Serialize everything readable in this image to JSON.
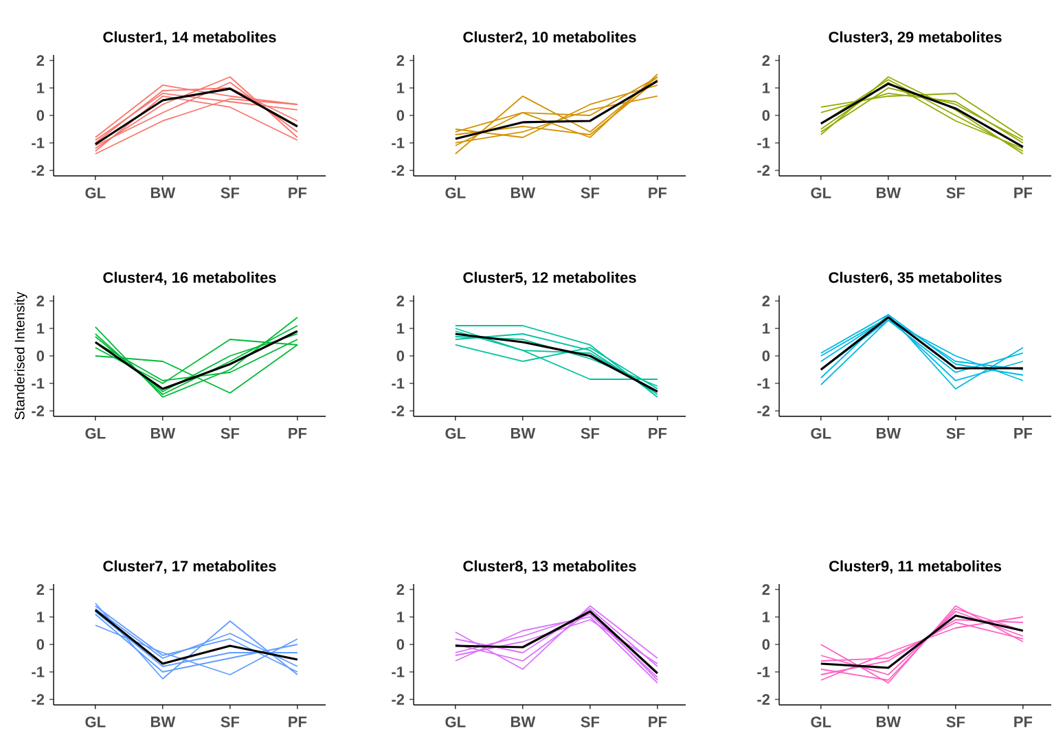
{
  "chart_data": [
    {
      "type": "line",
      "title": "Cluster1, 14 metabolites",
      "categories": [
        "GL",
        "BW",
        "SF",
        "PF"
      ],
      "ylim": [
        -2.2,
        2.2
      ],
      "yticks": [
        -2,
        -1,
        0,
        1,
        2
      ],
      "series": [
        {
          "color": "#F8766D",
          "values": [
            -1.4,
            -0.2,
            0.6,
            0.4
          ]
        },
        {
          "color": "#F8766D",
          "values": [
            -0.8,
            1.1,
            0.7,
            0.4
          ]
        },
        {
          "color": "#F8766D",
          "values": [
            -1.2,
            0.4,
            1.4,
            -0.8
          ]
        },
        {
          "color": "#F8766D",
          "values": [
            -0.9,
            0.8,
            0.5,
            0.2
          ]
        },
        {
          "color": "#F8766D",
          "values": [
            -1.1,
            0.1,
            1.2,
            -0.6
          ]
        },
        {
          "color": "#F8766D",
          "values": [
            -1.3,
            0.7,
            0.3,
            -0.9
          ]
        },
        {
          "color": "#F8766D",
          "values": [
            -1.0,
            0.9,
            1.0,
            -0.2
          ]
        },
        {
          "color": "#000000",
          "values": [
            -1.05,
            0.55,
            0.97,
            -0.4
          ]
        }
      ]
    },
    {
      "type": "line",
      "title": "Cluster2, 10 metabolites",
      "categories": [
        "GL",
        "BW",
        "SF",
        "PF"
      ],
      "ylim": [
        -2.2,
        2.2
      ],
      "yticks": [
        -2,
        -1,
        0,
        1,
        2
      ],
      "series": [
        {
          "color": "#D39200",
          "values": [
            -1.4,
            0.7,
            -0.6,
            1.4
          ]
        },
        {
          "color": "#D39200",
          "values": [
            -0.5,
            -0.8,
            0.4,
            1.1
          ]
        },
        {
          "color": "#D39200",
          "values": [
            -0.6,
            0.1,
            -0.8,
            1.5
          ]
        },
        {
          "color": "#D39200",
          "values": [
            -1.0,
            -0.6,
            0.2,
            0.7
          ]
        },
        {
          "color": "#D39200",
          "values": [
            -0.7,
            -0.4,
            -0.7,
            1.3
          ]
        },
        {
          "color": "#D39200",
          "values": [
            -1.1,
            0.1,
            0.0,
            1.4
          ]
        },
        {
          "color": "#000000",
          "values": [
            -0.85,
            -0.25,
            -0.2,
            1.25
          ]
        }
      ]
    },
    {
      "type": "line",
      "title": "Cluster3, 29 metabolites",
      "categories": [
        "GL",
        "BW",
        "SF",
        "PF"
      ],
      "ylim": [
        -2.2,
        2.2
      ],
      "yticks": [
        -2,
        -1,
        0,
        1,
        2
      ],
      "series": [
        {
          "color": "#93AA00",
          "values": [
            -0.7,
            1.4,
            0.2,
            -1.4
          ]
        },
        {
          "color": "#93AA00",
          "values": [
            0.3,
            0.7,
            0.8,
            -0.8
          ]
        },
        {
          "color": "#93AA00",
          "values": [
            -0.5,
            1.2,
            -0.2,
            -1.2
          ]
        },
        {
          "color": "#93AA00",
          "values": [
            0.1,
            0.8,
            0.5,
            -1.0
          ]
        },
        {
          "color": "#93AA00",
          "values": [
            -0.3,
            1.3,
            0.0,
            -1.3
          ]
        },
        {
          "color": "#93AA00",
          "values": [
            -0.6,
            1.0,
            0.4,
            -0.9
          ]
        },
        {
          "color": "#000000",
          "values": [
            -0.3,
            1.15,
            0.25,
            -1.15
          ]
        }
      ]
    },
    {
      "type": "line",
      "title": "Cluster4, 16 metabolites",
      "ylabel": "Standerised Intensity",
      "categories": [
        "GL",
        "BW",
        "SF",
        "PF"
      ],
      "ylim": [
        -2.2,
        2.2
      ],
      "yticks": [
        -2,
        -1,
        0,
        1,
        2
      ],
      "series": [
        {
          "color": "#00BA38",
          "values": [
            1.05,
            -1.5,
            -0.5,
            1.4
          ]
        },
        {
          "color": "#00BA38",
          "values": [
            0.0,
            -0.2,
            -1.35,
            0.4
          ]
        },
        {
          "color": "#00BA38",
          "values": [
            0.3,
            -1.0,
            0.6,
            0.4
          ]
        },
        {
          "color": "#00BA38",
          "values": [
            0.8,
            -1.4,
            -0.2,
            1.1
          ]
        },
        {
          "color": "#00BA38",
          "values": [
            0.5,
            -0.9,
            -0.6,
            0.6
          ]
        },
        {
          "color": "#00BA38",
          "values": [
            0.7,
            -1.3,
            0.0,
            0.8
          ]
        },
        {
          "color": "#000000",
          "values": [
            0.5,
            -1.2,
            -0.3,
            0.9
          ]
        }
      ]
    },
    {
      "type": "line",
      "title": "Cluster5, 12 metabolites",
      "categories": [
        "GL",
        "BW",
        "SF",
        "PF"
      ],
      "ylim": [
        -2.2,
        2.2
      ],
      "yticks": [
        -2,
        -1,
        0,
        1,
        2
      ],
      "series": [
        {
          "color": "#00C19F",
          "values": [
            1.1,
            1.1,
            0.4,
            -1.5
          ]
        },
        {
          "color": "#00C19F",
          "values": [
            0.4,
            -0.2,
            0.3,
            -1.2
          ]
        },
        {
          "color": "#00C19F",
          "values": [
            0.9,
            0.2,
            -0.85,
            -0.85
          ]
        },
        {
          "color": "#00C19F",
          "values": [
            0.6,
            0.8,
            0.2,
            -1.4
          ]
        },
        {
          "color": "#00C19F",
          "values": [
            1.0,
            0.2,
            0.1,
            -1.3
          ]
        },
        {
          "color": "#00C19F",
          "values": [
            0.7,
            0.6,
            -0.1,
            -1.1
          ]
        },
        {
          "color": "#000000",
          "values": [
            0.8,
            0.5,
            0.0,
            -1.3
          ]
        }
      ]
    },
    {
      "type": "line",
      "title": "Cluster6, 35 metabolites",
      "categories": [
        "GL",
        "BW",
        "SF",
        "PF"
      ],
      "ylim": [
        -2.2,
        2.2
      ],
      "yticks": [
        -2,
        -1,
        0,
        1,
        2
      ],
      "series": [
        {
          "color": "#00B9E3",
          "values": [
            0.1,
            1.5,
            -1.2,
            0.3
          ]
        },
        {
          "color": "#00B9E3",
          "values": [
            -1.05,
            1.3,
            0.0,
            -0.9
          ]
        },
        {
          "color": "#00B9E3",
          "values": [
            -0.2,
            1.4,
            -0.9,
            -0.2
          ]
        },
        {
          "color": "#00B9E3",
          "values": [
            -0.8,
            1.5,
            -0.3,
            -0.7
          ]
        },
        {
          "color": "#00B9E3",
          "values": [
            -0.5,
            1.3,
            -0.6,
            0.1
          ]
        },
        {
          "color": "#00B9E3",
          "values": [
            0.0,
            1.4,
            -0.2,
            -0.5
          ]
        },
        {
          "color": "#000000",
          "values": [
            -0.5,
            1.4,
            -0.45,
            -0.45
          ]
        }
      ]
    },
    {
      "type": "line",
      "title": "Cluster7, 17 metabolites",
      "categories": [
        "GL",
        "BW",
        "SF",
        "PF"
      ],
      "ylim": [
        -2.2,
        2.2
      ],
      "yticks": [
        -2,
        -1,
        0,
        1,
        2
      ],
      "series": [
        {
          "color": "#619CFF",
          "values": [
            1.5,
            -1.25,
            0.85,
            -1.1
          ]
        },
        {
          "color": "#619CFF",
          "values": [
            0.7,
            -0.3,
            -1.1,
            0.2
          ]
        },
        {
          "color": "#619CFF",
          "values": [
            1.3,
            -0.5,
            0.4,
            -0.8
          ]
        },
        {
          "color": "#619CFF",
          "values": [
            1.1,
            -1.0,
            -0.5,
            0.0
          ]
        },
        {
          "color": "#619CFF",
          "values": [
            1.4,
            -0.4,
            0.2,
            -1.0
          ]
        },
        {
          "color": "#619CFF",
          "values": [
            1.2,
            -0.8,
            -0.3,
            -0.3
          ]
        },
        {
          "color": "#000000",
          "values": [
            1.25,
            -0.7,
            -0.05,
            -0.55
          ]
        }
      ]
    },
    {
      "type": "line",
      "title": "Cluster8, 13 metabolites",
      "categories": [
        "GL",
        "BW",
        "SF",
        "PF"
      ],
      "ylim": [
        -2.2,
        2.2
      ],
      "yticks": [
        -2,
        -1,
        0,
        1,
        2
      ],
      "series": [
        {
          "color": "#DB72FB",
          "values": [
            0.45,
            -0.9,
            1.4,
            -0.5
          ]
        },
        {
          "color": "#DB72FB",
          "values": [
            -0.6,
            0.5,
            1.0,
            -1.4
          ]
        },
        {
          "color": "#DB72FB",
          "values": [
            0.2,
            -0.3,
            1.3,
            -0.8
          ]
        },
        {
          "color": "#DB72FB",
          "values": [
            -0.3,
            0.3,
            1.1,
            -1.2
          ]
        },
        {
          "color": "#DB72FB",
          "values": [
            0.0,
            -0.6,
            1.2,
            -1.3
          ]
        },
        {
          "color": "#DB72FB",
          "values": [
            -0.4,
            0.1,
            0.9,
            -0.7
          ]
        },
        {
          "color": "#000000",
          "values": [
            -0.05,
            -0.1,
            1.2,
            -1.05
          ]
        }
      ]
    },
    {
      "type": "line",
      "title": "Cluster9, 11 metabolites",
      "categories": [
        "GL",
        "BW",
        "SF",
        "PF"
      ],
      "ylim": [
        -2.2,
        2.2
      ],
      "yticks": [
        -2,
        -1,
        0,
        1,
        2
      ],
      "series": [
        {
          "color": "#FF61C3",
          "values": [
            0.0,
            -1.4,
            1.4,
            0.1
          ]
        },
        {
          "color": "#FF61C3",
          "values": [
            -1.3,
            -0.3,
            0.6,
            1.0
          ]
        },
        {
          "color": "#FF61C3",
          "values": [
            -0.4,
            -1.1,
            1.2,
            0.3
          ]
        },
        {
          "color": "#FF61C3",
          "values": [
            -1.1,
            -0.6,
            0.9,
            0.8
          ]
        },
        {
          "color": "#FF61C3",
          "values": [
            -0.9,
            -1.3,
            1.3,
            0.5
          ]
        },
        {
          "color": "#FF61C3",
          "values": [
            -0.6,
            -0.5,
            0.8,
            0.2
          ]
        },
        {
          "color": "#000000",
          "values": [
            -0.7,
            -0.85,
            1.05,
            0.5
          ]
        }
      ]
    }
  ]
}
